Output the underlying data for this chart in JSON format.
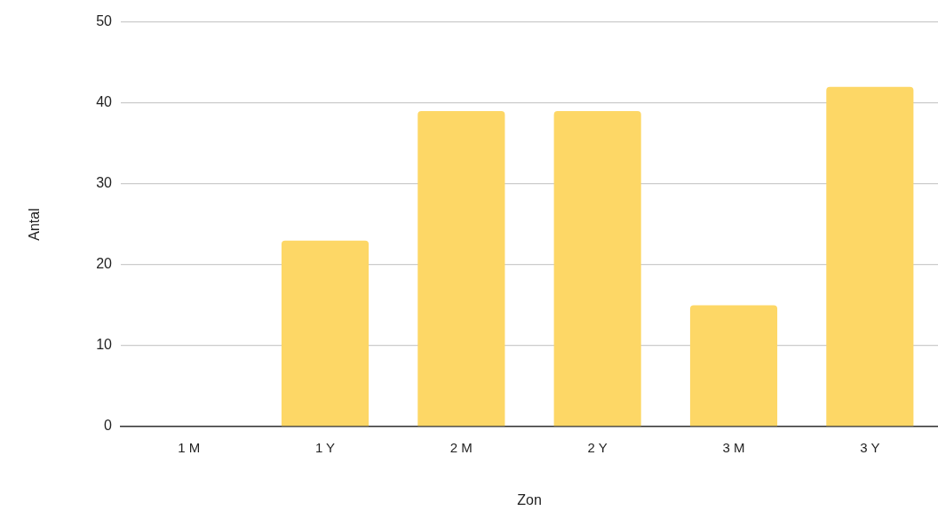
{
  "chart_data": {
    "type": "bar",
    "xlabel": "Zon",
    "ylabel": "Antal",
    "categories": [
      "1 M",
      "1 Y",
      "2 M",
      "2 Y",
      "3 M",
      "3 Y"
    ],
    "values": [
      0,
      23,
      39,
      39,
      15,
      42
    ],
    "color": "#fdd766",
    "ylim": [
      0,
      50
    ],
    "yticks": [
      0,
      10,
      20,
      30,
      40,
      50
    ],
    "grid": "y"
  }
}
